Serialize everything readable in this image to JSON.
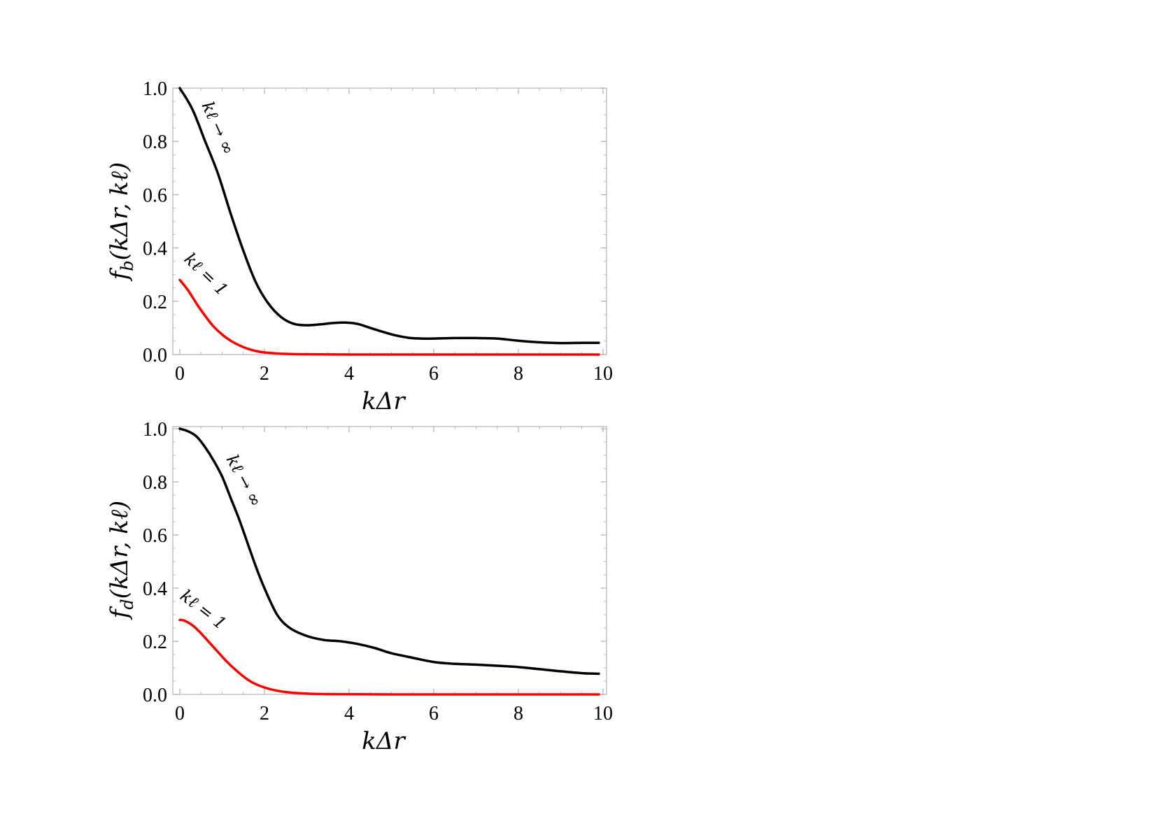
{
  "chart_data": [
    {
      "type": "line",
      "title": "",
      "xlabel": "kΔr",
      "ylabel": "f_b(kΔr, kℓ)",
      "ylabel_main": "f",
      "ylabel_sub": "b",
      "ylabel_args": "(kΔr, kℓ)",
      "xlim": [
        0,
        10
      ],
      "ylim": [
        0,
        1
      ],
      "xticks": [
        "0",
        "2",
        "4",
        "6",
        "8",
        "10"
      ],
      "yticks": [
        "0.0",
        "0.2",
        "0.4",
        "0.6",
        "0.8",
        "1.0"
      ],
      "grid": false,
      "legend": "none",
      "series": [
        {
          "name": "kℓ → ∞",
          "color": "#000000",
          "x": [
            0,
            0.3,
            0.6,
            0.9,
            1.2,
            1.5,
            1.8,
            2.1,
            2.4,
            2.7,
            3.0,
            3.3,
            3.6,
            3.9,
            4.2,
            4.5,
            4.8,
            5.1,
            5.4,
            5.7,
            6.0,
            6.5,
            7.0,
            7.5,
            8.0,
            8.5,
            9.0,
            9.5,
            9.9
          ],
          "y": [
            1.0,
            0.92,
            0.8,
            0.68,
            0.53,
            0.39,
            0.27,
            0.19,
            0.14,
            0.115,
            0.11,
            0.113,
            0.118,
            0.12,
            0.115,
            0.1,
            0.085,
            0.072,
            0.063,
            0.06,
            0.06,
            0.062,
            0.062,
            0.06,
            0.052,
            0.046,
            0.043,
            0.044,
            0.044
          ]
        },
        {
          "name": "kℓ = 1",
          "color": "#ff0000",
          "x": [
            0,
            0.2,
            0.4,
            0.6,
            0.8,
            1.0,
            1.2,
            1.4,
            1.6,
            1.8,
            2.0,
            2.3,
            2.6,
            3.0,
            4.0,
            6.0,
            8.0,
            9.9
          ],
          "y": [
            0.28,
            0.24,
            0.19,
            0.145,
            0.105,
            0.075,
            0.052,
            0.035,
            0.022,
            0.013,
            0.008,
            0.004,
            0.002,
            0.001,
            0.0,
            0.0,
            0.0,
            0.0
          ]
        }
      ]
    },
    {
      "type": "line",
      "title": "",
      "xlabel": "kΔr",
      "ylabel": "f_d(kΔr, kℓ)",
      "ylabel_main": "f",
      "ylabel_sub": "d",
      "ylabel_args": "(kΔr, kℓ)",
      "xlim": [
        0,
        10
      ],
      "ylim": [
        0,
        1
      ],
      "xticks": [
        "0",
        "2",
        "4",
        "6",
        "8",
        "10"
      ],
      "yticks": [
        "0.0",
        "0.2",
        "0.4",
        "0.6",
        "0.8",
        "1.0"
      ],
      "grid": false,
      "legend": "none",
      "series": [
        {
          "name": "kℓ → ∞",
          "color": "#000000",
          "x": [
            0,
            0.2,
            0.4,
            0.6,
            0.8,
            1.0,
            1.2,
            1.4,
            1.6,
            1.8,
            2.0,
            2.3,
            2.6,
            3.0,
            3.4,
            3.8,
            4.2,
            4.6,
            5.0,
            5.5,
            6.0,
            6.5,
            7.0,
            7.5,
            8.0,
            8.5,
            9.0,
            9.5,
            9.9
          ],
          "y": [
            1.0,
            0.99,
            0.97,
            0.93,
            0.88,
            0.82,
            0.74,
            0.66,
            0.57,
            0.48,
            0.4,
            0.3,
            0.25,
            0.22,
            0.205,
            0.2,
            0.19,
            0.175,
            0.155,
            0.138,
            0.122,
            0.115,
            0.112,
            0.108,
            0.103,
            0.095,
            0.087,
            0.08,
            0.078
          ]
        },
        {
          "name": "kℓ = 1",
          "color": "#ff0000",
          "x": [
            0,
            0.1,
            0.3,
            0.5,
            0.7,
            0.9,
            1.1,
            1.3,
            1.5,
            1.7,
            2.0,
            2.3,
            2.6,
            3.0,
            3.5,
            5.0,
            7.0,
            9.9
          ],
          "y": [
            0.28,
            0.278,
            0.26,
            0.23,
            0.195,
            0.16,
            0.125,
            0.095,
            0.068,
            0.046,
            0.026,
            0.014,
            0.007,
            0.003,
            0.001,
            0.0,
            0.0,
            0.0
          ]
        }
      ]
    }
  ]
}
